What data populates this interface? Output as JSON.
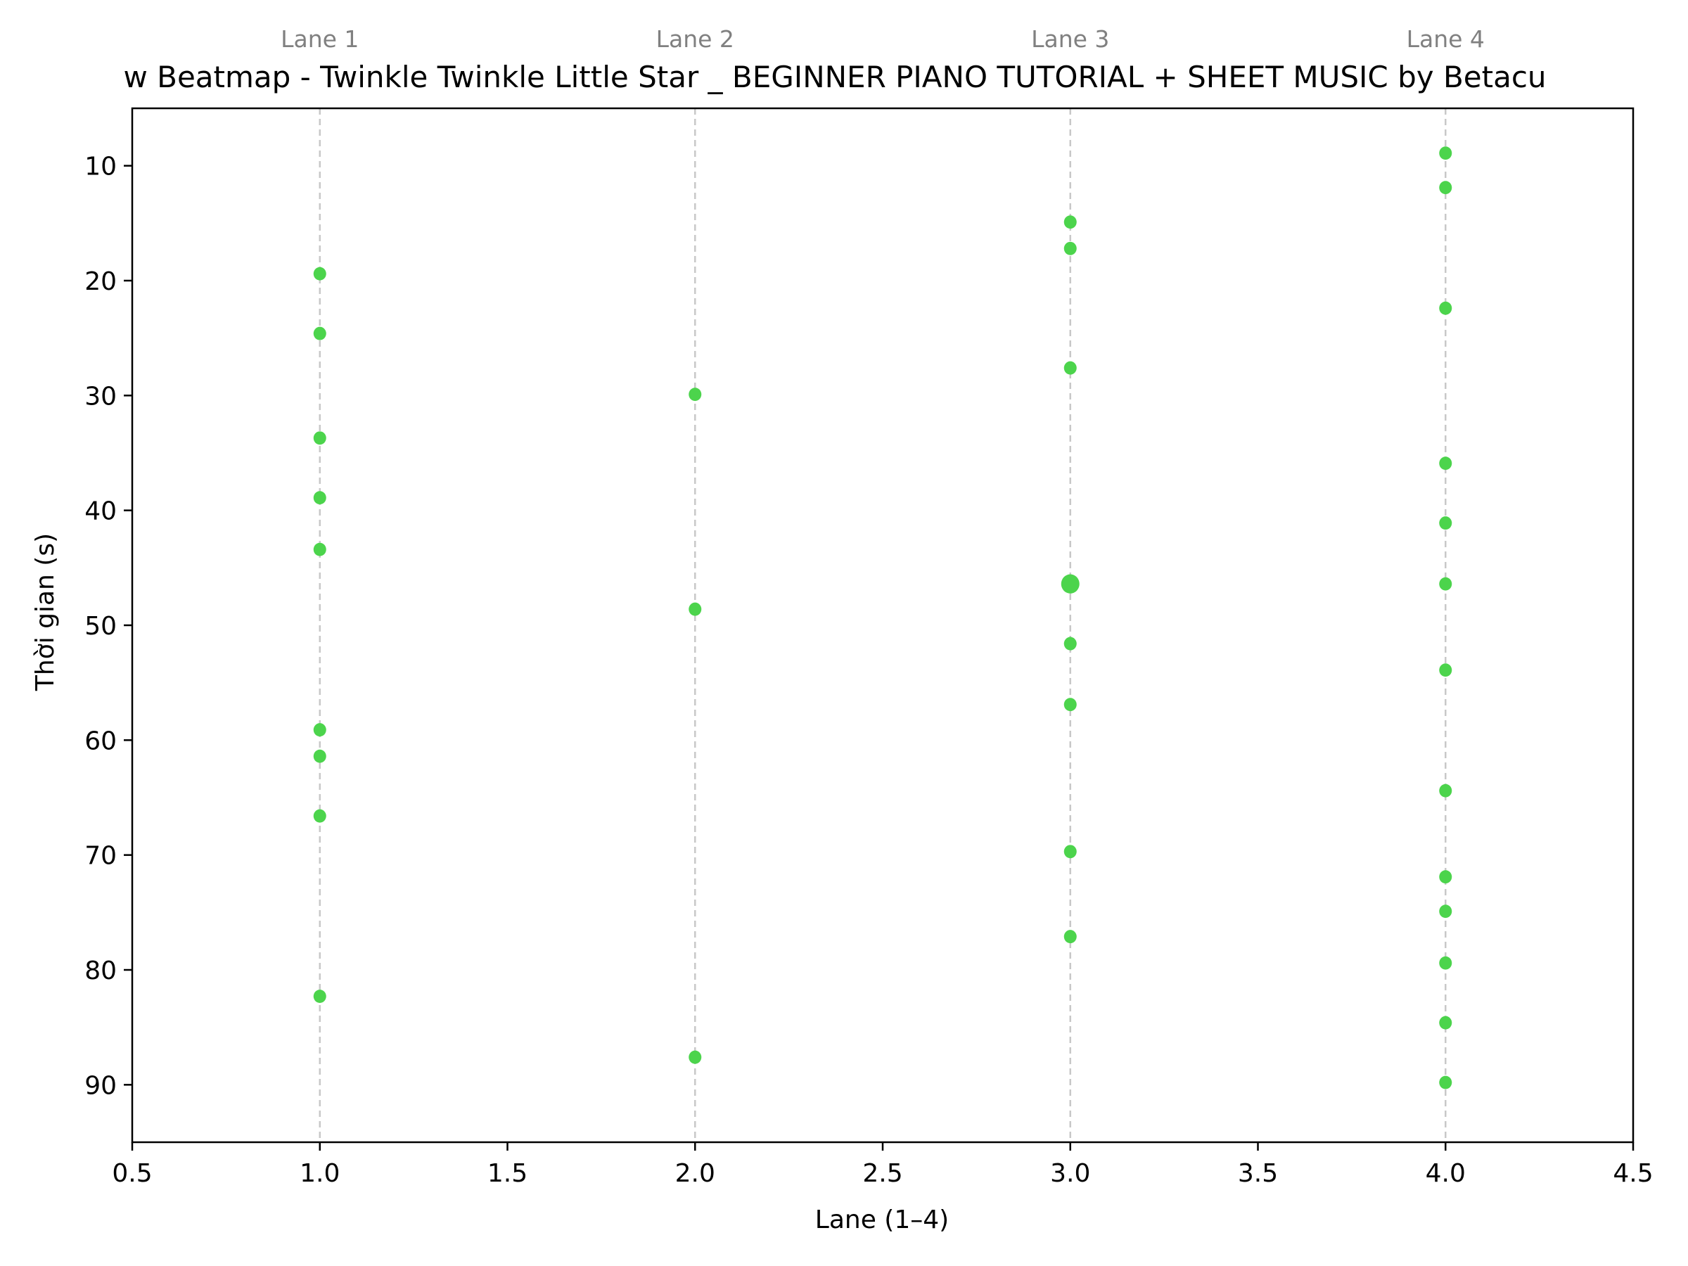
{
  "chart_data": {
    "type": "scatter",
    "title": "w Beatmap - Twinkle Twinkle Little Star _ BEGINNER PIANO TUTORIAL + SHEET MUSIC by Betacu",
    "xlabel": "Lane (1–4)",
    "ylabel": "Thời gian (s)",
    "xlim": [
      0.5,
      4.5
    ],
    "ylim": [
      95,
      5
    ],
    "y_inverted": true,
    "xticks": [
      "0.5",
      "1.0",
      "1.5",
      "2.0",
      "2.5",
      "3.0",
      "3.5",
      "4.0",
      "4.5"
    ],
    "yticks": [
      "10",
      "20",
      "30",
      "40",
      "50",
      "60",
      "70",
      "80",
      "90"
    ],
    "grid": false,
    "lane_labels": [
      {
        "lane": 1,
        "text": "Lane 1"
      },
      {
        "lane": 2,
        "text": "Lane 2"
      },
      {
        "lane": 3,
        "text": "Lane 3"
      },
      {
        "lane": 4,
        "text": "Lane 4"
      }
    ],
    "colors": {
      "point": "#4cd44c",
      "lane_line": "#c8c8c8",
      "axis": "#000000"
    },
    "points": [
      {
        "lane": 1,
        "time": 19.4
      },
      {
        "lane": 1,
        "time": 24.6
      },
      {
        "lane": 1,
        "time": 33.7
      },
      {
        "lane": 1,
        "time": 38.9
      },
      {
        "lane": 1,
        "time": 43.4
      },
      {
        "lane": 1,
        "time": 59.1
      },
      {
        "lane": 1,
        "time": 61.4
      },
      {
        "lane": 1,
        "time": 66.6
      },
      {
        "lane": 1,
        "time": 82.3
      },
      {
        "lane": 2,
        "time": 29.9
      },
      {
        "lane": 2,
        "time": 48.6
      },
      {
        "lane": 2,
        "time": 87.6
      },
      {
        "lane": 3,
        "time": 14.9
      },
      {
        "lane": 3,
        "time": 17.2
      },
      {
        "lane": 3,
        "time": 27.6
      },
      {
        "lane": 3,
        "time": 46.4,
        "size": "large"
      },
      {
        "lane": 3,
        "time": 51.6
      },
      {
        "lane": 3,
        "time": 56.9
      },
      {
        "lane": 3,
        "time": 69.7
      },
      {
        "lane": 3,
        "time": 77.1
      },
      {
        "lane": 4,
        "time": 8.9
      },
      {
        "lane": 4,
        "time": 11.9
      },
      {
        "lane": 4,
        "time": 22.4
      },
      {
        "lane": 4,
        "time": 35.9
      },
      {
        "lane": 4,
        "time": 41.1
      },
      {
        "lane": 4,
        "time": 46.4
      },
      {
        "lane": 4,
        "time": 53.9
      },
      {
        "lane": 4,
        "time": 64.4
      },
      {
        "lane": 4,
        "time": 71.9
      },
      {
        "lane": 4,
        "time": 74.9
      },
      {
        "lane": 4,
        "time": 79.4
      },
      {
        "lane": 4,
        "time": 84.6
      },
      {
        "lane": 4,
        "time": 89.8
      }
    ]
  }
}
